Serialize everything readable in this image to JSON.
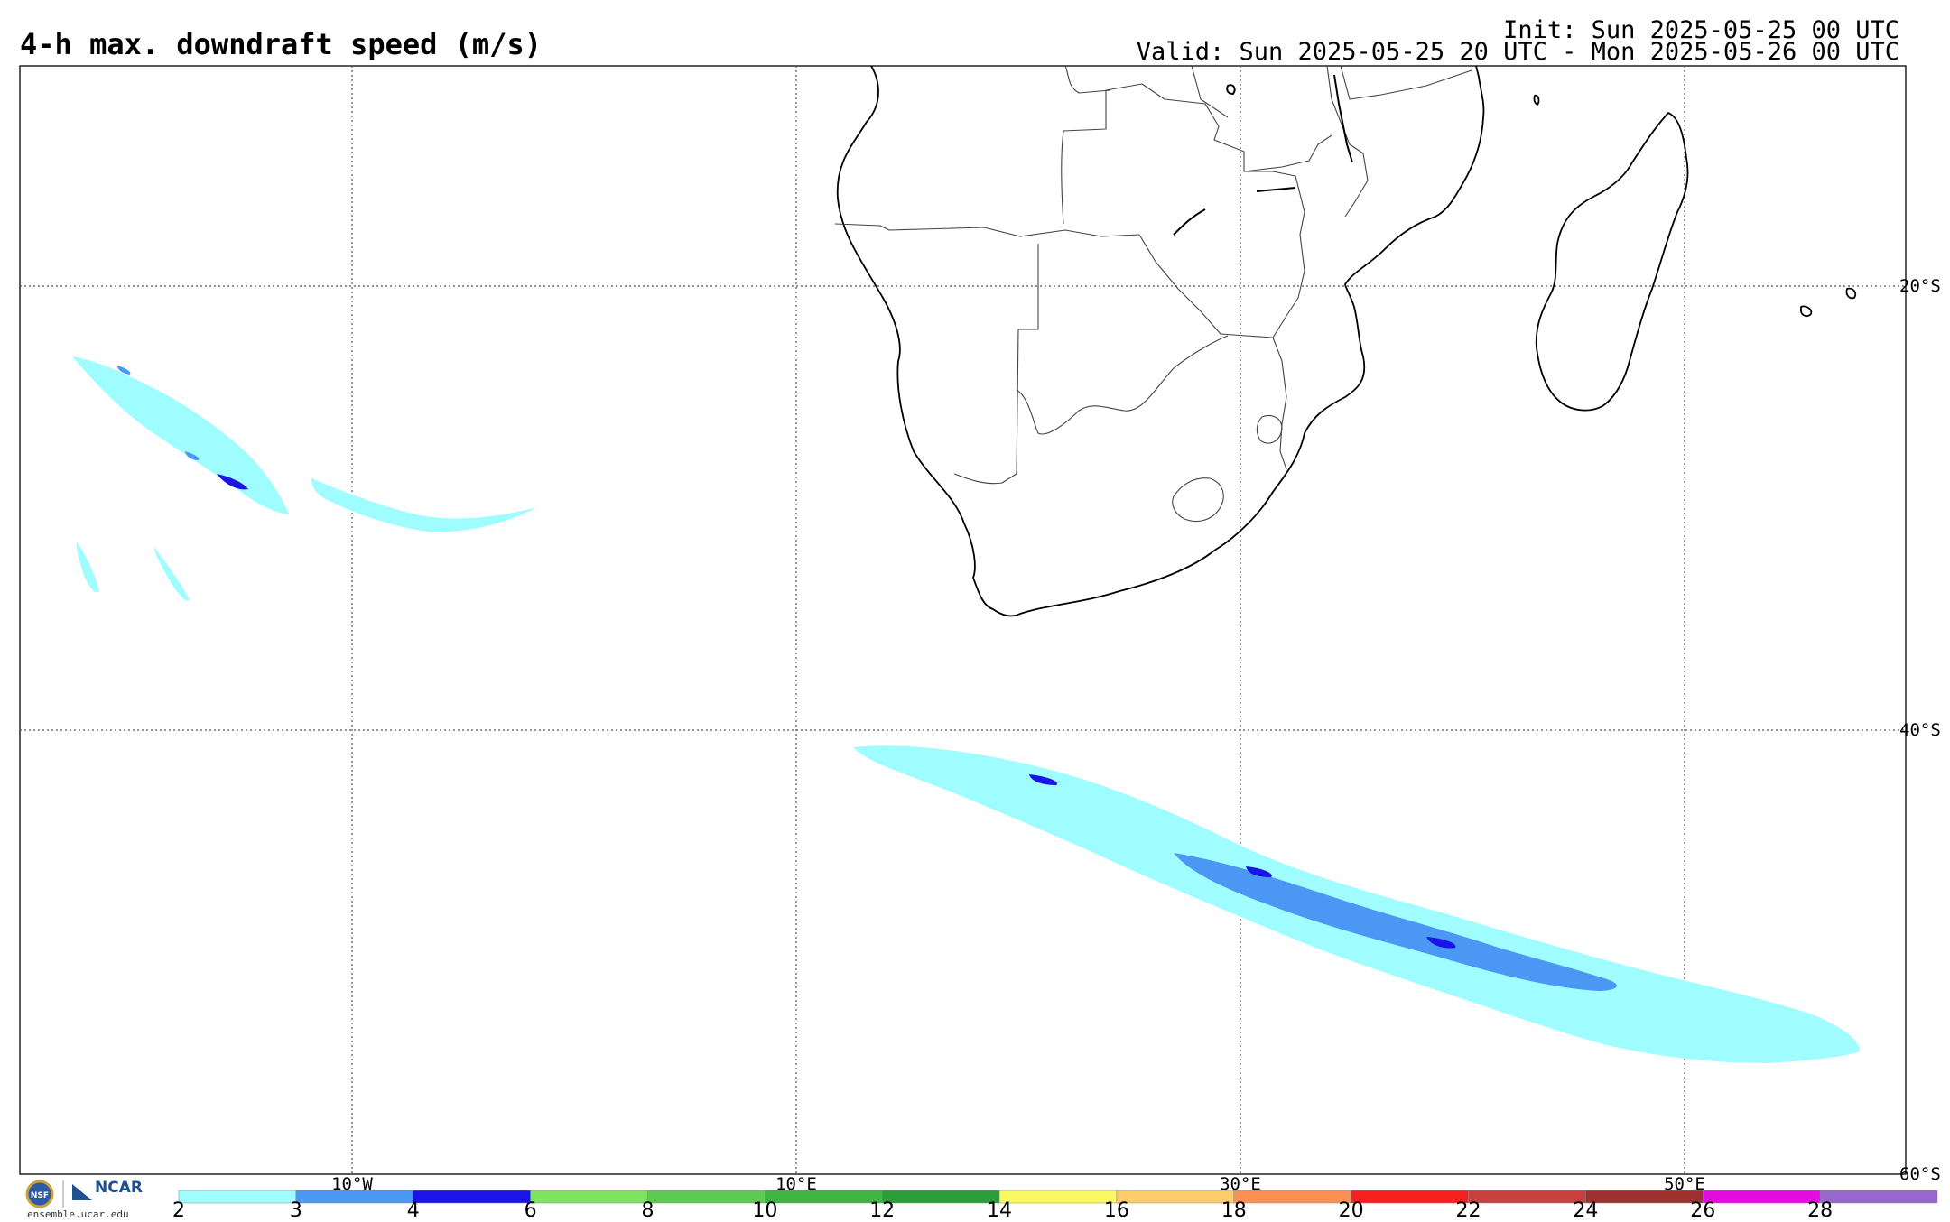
{
  "header": {
    "title": "4-h max. downdraft speed (m/s)",
    "init": "Init: Sun 2025-05-25 00 UTC",
    "valid": "Valid: Sun 2025-05-25 20 UTC - Mon 2025-05-26 00 UTC"
  },
  "map": {
    "projection": "cylindrical equidistant",
    "lon_range": [
      -25,
      60
    ],
    "lat_range": [
      -60,
      -10
    ],
    "grid_lons": [
      -10,
      10,
      30,
      50
    ],
    "grid_lats": [
      -20,
      -40,
      -60
    ],
    "lon_labels": [
      "10°W",
      "10°E",
      "30°E",
      "50°E"
    ],
    "lat_labels": [
      "20°S",
      "40°S",
      "60°S"
    ],
    "features": [
      "southern-africa-coastline",
      "country-borders",
      "madagascar",
      "lakes"
    ],
    "shaded_areas": [
      {
        "name": "south-atlantic-cells",
        "max_class": "4-6"
      },
      {
        "name": "southern-ocean-band",
        "max_class": "4-6"
      }
    ]
  },
  "colorbar": {
    "ticks": [
      "2",
      "3",
      "4",
      "6",
      "8",
      "10",
      "12",
      "14",
      "16",
      "18",
      "20",
      "22",
      "24",
      "26",
      "28"
    ],
    "colors": [
      "#9ffcff",
      "#4a97f4",
      "#1a15e6",
      "#7ee35f",
      "#5ccb4f",
      "#3fb641",
      "#2a9f39",
      "#fcf863",
      "#fdcc6b",
      "#fc8f52",
      "#f72021",
      "#c84040",
      "#a0302f",
      "#e50ce2",
      "#9866cf"
    ]
  },
  "branding": {
    "logo_text": "NCAR",
    "nsf_text": "NSF",
    "caption": "ensemble.ucar.edu"
  }
}
